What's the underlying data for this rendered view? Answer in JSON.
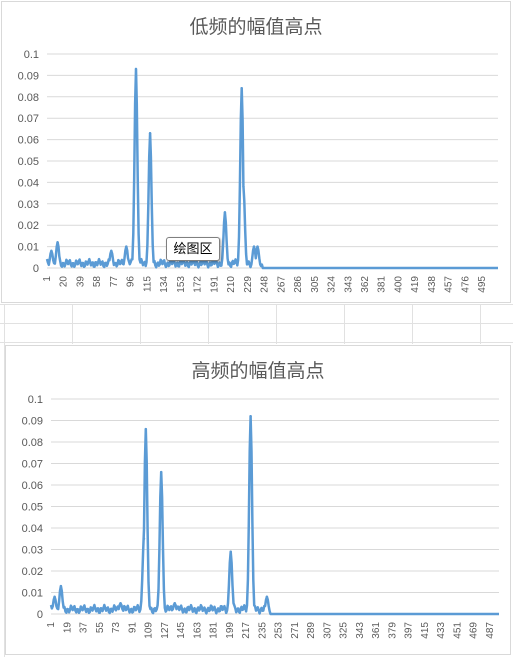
{
  "tooltip": "绘图区",
  "colors": {
    "series": "#5b9bd5",
    "grid": "#d9d9d9",
    "text": "#595959"
  },
  "chart_data": [
    {
      "type": "line",
      "title": "低频的幅值高点",
      "ylim": [
        0,
        0.1
      ],
      "yticks": [
        "0",
        "0.01",
        "0.02",
        "0.03",
        "0.04",
        "0.05",
        "0.06",
        "0.07",
        "0.08",
        "0.09",
        "0.1"
      ],
      "xticks": [
        "1",
        "20",
        "39",
        "58",
        "77",
        "96",
        "115",
        "134",
        "153",
        "172",
        "191",
        "210",
        "229",
        "248",
        "267",
        "286",
        "305",
        "324",
        "343",
        "362",
        "381",
        "400",
        "419",
        "438",
        "457",
        "476",
        "495"
      ],
      "x_range": [
        1,
        513
      ],
      "grid": "horizontal",
      "peaks": [
        {
          "x": 6,
          "y": 0.008
        },
        {
          "x": 13,
          "y": 0.012
        },
        {
          "x": 74,
          "y": 0.008
        },
        {
          "x": 91,
          "y": 0.01
        },
        {
          "x": 102,
          "y": 0.093
        },
        {
          "x": 118,
          "y": 0.063
        },
        {
          "x": 203,
          "y": 0.026
        },
        {
          "x": 222,
          "y": 0.084
        },
        {
          "x": 224,
          "y": 0.038
        },
        {
          "x": 236,
          "y": 0.01
        },
        {
          "x": 240,
          "y": 0.01
        }
      ],
      "signal_end": 245
    },
    {
      "type": "line",
      "title": "高频的幅值高点",
      "ylim": [
        0,
        0.1
      ],
      "yticks": [
        "0",
        "0.01",
        "0.02",
        "0.03",
        "0.04",
        "0.05",
        "0.06",
        "0.07",
        "0.08",
        "0.09",
        "0.1"
      ],
      "xticks": [
        "1",
        "19",
        "37",
        "55",
        "73",
        "91",
        "109",
        "127",
        "145",
        "163",
        "181",
        "199",
        "217",
        "235",
        "253",
        "271",
        "289",
        "307",
        "325",
        "343",
        "361",
        "379",
        "397",
        "415",
        "433",
        "451",
        "469",
        "487"
      ],
      "x_range": [
        1,
        497
      ],
      "grid": "horizontal",
      "peaks": [
        {
          "x": 5,
          "y": 0.008
        },
        {
          "x": 12,
          "y": 0.013
        },
        {
          "x": 78,
          "y": 0.005
        },
        {
          "x": 104,
          "y": 0.035
        },
        {
          "x": 106,
          "y": 0.086
        },
        {
          "x": 123,
          "y": 0.066
        },
        {
          "x": 138,
          "y": 0.005
        },
        {
          "x": 200,
          "y": 0.029
        },
        {
          "x": 222,
          "y": 0.092
        },
        {
          "x": 240,
          "y": 0.008
        }
      ],
      "signal_end": 243
    }
  ]
}
